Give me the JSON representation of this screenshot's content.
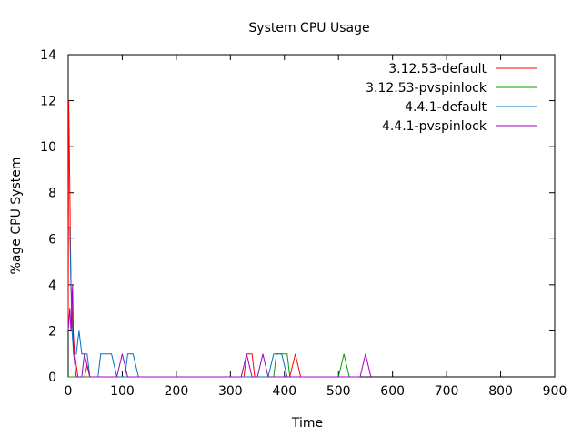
{
  "chart_data": {
    "type": "line",
    "title": "System CPU Usage",
    "xlabel": "Time",
    "ylabel": "%age CPU System",
    "xlim": [
      0,
      900
    ],
    "ylim": [
      0,
      14
    ],
    "xticks": [
      0,
      100,
      200,
      300,
      400,
      500,
      600,
      700,
      800,
      900
    ],
    "yticks": [
      0,
      2,
      4,
      6,
      8,
      10,
      12,
      14
    ],
    "grid": false,
    "legend_position": "top-right",
    "series": [
      {
        "name": "3.12.53-default",
        "color": "#ff0000",
        "points": [
          [
            0,
            2
          ],
          [
            1,
            12
          ],
          [
            3,
            8
          ],
          [
            5,
            4
          ],
          [
            7,
            3
          ],
          [
            9,
            2
          ],
          [
            12,
            1
          ],
          [
            18,
            0
          ],
          [
            30,
            0
          ],
          [
            35,
            0.5
          ],
          [
            40,
            0
          ],
          [
            325,
            0
          ],
          [
            330,
            1
          ],
          [
            340,
            1
          ],
          [
            345,
            0
          ],
          [
            410,
            0
          ],
          [
            420,
            1
          ],
          [
            430,
            0
          ]
        ]
      },
      {
        "name": "3.12.53-pvspinlock",
        "color": "#00a000",
        "points": [
          [
            0,
            0
          ],
          [
            2,
            0
          ],
          [
            380,
            0
          ],
          [
            385,
            1
          ],
          [
            405,
            1
          ],
          [
            410,
            0
          ],
          [
            500,
            0
          ],
          [
            510,
            1
          ],
          [
            520,
            0
          ]
        ]
      },
      {
        "name": "4.4.1-default",
        "color": "#0070c0",
        "points": [
          [
            0,
            6.5
          ],
          [
            3,
            6.5
          ],
          [
            5,
            4
          ],
          [
            7,
            2
          ],
          [
            10,
            1
          ],
          [
            15,
            1
          ],
          [
            20,
            2
          ],
          [
            25,
            1
          ],
          [
            35,
            1
          ],
          [
            40,
            0
          ],
          [
            55,
            0
          ],
          [
            60,
            1
          ],
          [
            80,
            1
          ],
          [
            90,
            0
          ],
          [
            105,
            0
          ],
          [
            110,
            1
          ],
          [
            120,
            1
          ],
          [
            130,
            0
          ],
          [
            370,
            0
          ],
          [
            380,
            1
          ],
          [
            395,
            1
          ],
          [
            405,
            0
          ]
        ]
      },
      {
        "name": "4.4.1-pvspinlock",
        "color": "#a000c0",
        "points": [
          [
            0,
            2
          ],
          [
            3,
            3
          ],
          [
            5,
            2
          ],
          [
            8,
            4
          ],
          [
            10,
            1
          ],
          [
            15,
            0
          ],
          [
            25,
            0
          ],
          [
            30,
            1
          ],
          [
            40,
            0
          ],
          [
            90,
            0
          ],
          [
            100,
            1
          ],
          [
            110,
            0
          ],
          [
            320,
            0
          ],
          [
            330,
            1
          ],
          [
            340,
            0
          ],
          [
            350,
            0
          ],
          [
            360,
            1
          ],
          [
            370,
            0
          ],
          [
            540,
            0
          ],
          [
            550,
            1
          ],
          [
            560,
            0
          ]
        ]
      }
    ]
  }
}
